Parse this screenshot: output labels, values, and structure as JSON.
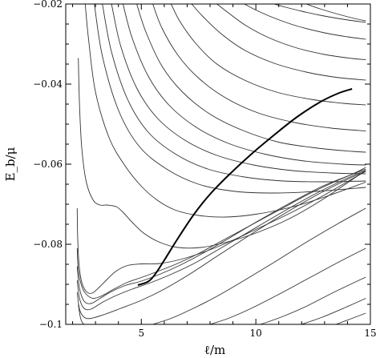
{
  "chart_data": {
    "type": "line",
    "title": "",
    "xlabel": "ℓ/m",
    "ylabel": "E_b/μ",
    "xlim": [
      1.7,
      15
    ],
    "ylim": [
      -0.1,
      -0.02
    ],
    "xticks": [
      5,
      10,
      15
    ],
    "xtick_labels": [
      "5",
      "10",
      "15"
    ],
    "yticks": [
      -0.1,
      -0.08,
      -0.06,
      -0.04,
      -0.02
    ],
    "ytick_labels": [
      "−0.1",
      "−0.08",
      "−0.06",
      "−0.04",
      "−0.02"
    ],
    "grid": false,
    "legend": "none",
    "colors": {
      "thin_curves": "#333333",
      "thick_curve": "#000000",
      "frame": "#000000"
    },
    "thin_series": [
      {
        "x": [
          10.8,
          11.3,
          12.0,
          12.8,
          13.8,
          14.8
        ],
        "y": [
          -0.02,
          -0.0208,
          -0.0218,
          -0.0228,
          -0.0238,
          -0.0246
        ]
      },
      {
        "x": [
          12.2,
          12.8,
          13.5,
          14.3,
          14.8
        ],
        "y": [
          -0.02,
          -0.0212,
          -0.0224,
          -0.0236,
          -0.0242
        ]
      },
      {
        "x": [
          9.5,
          10.0,
          10.8,
          11.8,
          13.0,
          14.0,
          14.8
        ],
        "y": [
          -0.02,
          -0.0215,
          -0.0235,
          -0.0255,
          -0.0272,
          -0.0282,
          -0.0288
        ]
      },
      {
        "x": [
          8.3,
          8.8,
          9.6,
          10.6,
          11.8,
          13.0,
          14.2,
          14.8
        ],
        "y": [
          -0.02,
          -0.0222,
          -0.0255,
          -0.0285,
          -0.031,
          -0.0326,
          -0.0336,
          -0.0339
        ]
      },
      {
        "x": [
          7.2,
          7.7,
          8.5,
          9.5,
          10.8,
          12.2,
          13.5,
          14.8
        ],
        "y": [
          -0.02,
          -0.0232,
          -0.0275,
          -0.0315,
          -0.0348,
          -0.037,
          -0.0383,
          -0.039
        ]
      },
      {
        "x": [
          6.3,
          6.7,
          7.4,
          8.3,
          9.5,
          10.9,
          12.4,
          13.8,
          14.8
        ],
        "y": [
          -0.02,
          -0.0245,
          -0.03,
          -0.035,
          -0.039,
          -0.042,
          -0.0438,
          -0.0448,
          -0.0452
        ]
      },
      {
        "x": [
          5.5,
          5.9,
          6.6,
          7.5,
          8.7,
          10.1,
          11.7,
          13.3,
          14.8
        ],
        "y": [
          -0.02,
          -0.026,
          -0.0328,
          -0.0385,
          -0.0435,
          -0.0472,
          -0.0496,
          -0.051,
          -0.0517
        ]
      },
      {
        "x": [
          4.8,
          5.2,
          5.9,
          6.8,
          8.0,
          9.4,
          11.0,
          12.7,
          14.2,
          14.8
        ],
        "y": [
          -0.02,
          -0.027,
          -0.0355,
          -0.042,
          -0.0475,
          -0.0515,
          -0.0545,
          -0.056,
          -0.0568,
          -0.057
        ]
      },
      {
        "x": [
          4.2,
          4.6,
          5.3,
          6.2,
          7.4,
          8.8,
          10.4,
          12.1,
          13.8,
          14.8
        ],
        "y": [
          -0.02,
          -0.0285,
          -0.038,
          -0.0452,
          -0.0508,
          -0.0548,
          -0.0575,
          -0.0592,
          -0.06,
          -0.0602
        ]
      },
      {
        "x": [
          3.7,
          4.1,
          4.8,
          5.7,
          6.9,
          8.3,
          9.9,
          11.6,
          13.3,
          14.8
        ],
        "y": [
          -0.02,
          -0.0305,
          -0.041,
          -0.0485,
          -0.054,
          -0.0578,
          -0.0602,
          -0.0616,
          -0.0622,
          -0.0624
        ]
      },
      {
        "x": [
          3.3,
          3.7,
          4.4,
          5.3,
          6.5,
          7.9,
          9.5,
          11.2,
          13.0,
          14.8
        ],
        "y": [
          -0.02,
          -0.032,
          -0.0438,
          -0.052,
          -0.0575,
          -0.0612,
          -0.0632,
          -0.0642,
          -0.0644,
          -0.0642
        ]
      },
      {
        "x": [
          2.95,
          3.3,
          4.0,
          4.9,
          6.1,
          7.5,
          9.1,
          10.8,
          12.6,
          14.8
        ],
        "y": [
          -0.02,
          -0.033,
          -0.0465,
          -0.0555,
          -0.0612,
          -0.065,
          -0.0668,
          -0.0672,
          -0.0668,
          -0.0658
        ]
      },
      {
        "x": [
          2.55,
          2.7,
          3.0,
          3.6,
          4.3,
          5.0,
          5.7,
          6.5,
          7.5,
          8.7,
          10.0,
          11.5,
          13.0,
          14.8
        ],
        "y": [
          -0.02,
          -0.029,
          -0.042,
          -0.0535,
          -0.0605,
          -0.0655,
          -0.069,
          -0.0715,
          -0.0728,
          -0.0732,
          -0.0725,
          -0.0708,
          -0.0682,
          -0.0645
        ]
      },
      {
        "x": [
          2.25,
          2.3,
          2.4,
          2.6,
          2.9,
          3.2,
          3.5,
          3.9,
          4.2,
          4.6,
          5.1,
          5.8,
          6.6,
          7.6,
          8.7,
          10.0,
          11.5,
          13.0,
          14.8
        ],
        "y": [
          -0.0335,
          -0.045,
          -0.056,
          -0.0645,
          -0.069,
          -0.0702,
          -0.0702,
          -0.0706,
          -0.072,
          -0.0745,
          -0.0772,
          -0.0795,
          -0.0808,
          -0.0808,
          -0.0795,
          -0.0772,
          -0.0735,
          -0.0685,
          -0.0615
        ]
      },
      {
        "x": [
          2.2,
          2.22,
          2.28,
          2.4,
          2.6,
          2.85,
          3.15,
          3.5,
          3.9,
          4.4,
          5.0,
          5.8,
          6.7,
          7.7,
          8.8,
          10.0,
          11.4,
          12.8,
          14.2,
          14.8
        ],
        "y": [
          -0.071,
          -0.078,
          -0.085,
          -0.0895,
          -0.0918,
          -0.0922,
          -0.0908,
          -0.0888,
          -0.0867,
          -0.0853,
          -0.0849,
          -0.0848,
          -0.0838,
          -0.082,
          -0.0795,
          -0.0763,
          -0.0725,
          -0.0683,
          -0.0637,
          -0.0618
        ]
      },
      {
        "x": [
          2.2,
          2.25,
          2.4,
          2.6,
          2.9,
          3.3,
          3.8,
          4.4,
          5.0,
          5.7,
          6.5,
          7.4,
          8.4,
          9.6,
          11.0,
          12.4,
          13.8,
          14.8
        ],
        "y": [
          -0.081,
          -0.0865,
          -0.0905,
          -0.0925,
          -0.0935,
          -0.0928,
          -0.0912,
          -0.0895,
          -0.0883,
          -0.0868,
          -0.085,
          -0.0826,
          -0.0795,
          -0.0758,
          -0.0715,
          -0.0672,
          -0.0635,
          -0.0612
        ]
      },
      {
        "x": [
          2.2,
          2.3,
          2.5,
          2.8,
          3.2,
          3.7,
          4.3,
          5.0,
          5.8,
          6.7,
          7.7,
          8.8,
          10.0,
          11.4,
          12.8,
          14.2,
          14.8
        ],
        "y": [
          -0.0855,
          -0.091,
          -0.0942,
          -0.0948,
          -0.0935,
          -0.0918,
          -0.0903,
          -0.0892,
          -0.0875,
          -0.0852,
          -0.0822,
          -0.0786,
          -0.0745,
          -0.07,
          -0.0658,
          -0.0625,
          -0.0608
        ]
      },
      {
        "x": [
          2.2,
          2.3,
          2.5,
          2.8,
          3.3,
          3.9,
          4.6,
          5.4,
          6.3,
          7.3,
          8.4,
          9.6,
          11.0,
          12.4,
          13.8,
          14.8
        ],
        "y": [
          -0.089,
          -0.0935,
          -0.096,
          -0.0962,
          -0.0945,
          -0.0928,
          -0.0912,
          -0.0896,
          -0.0875,
          -0.0848,
          -0.0812,
          -0.0772,
          -0.0725,
          -0.068,
          -0.064,
          -0.0615
        ]
      },
      {
        "x": [
          2.2,
          2.3,
          2.5,
          2.8,
          3.4,
          4.1,
          5.0,
          6.0,
          7.1,
          8.3,
          9.6,
          11.0,
          12.5,
          14.0,
          14.8
        ],
        "y": [
          -0.092,
          -0.0962,
          -0.0982,
          -0.0985,
          -0.0975,
          -0.096,
          -0.094,
          -0.0912,
          -0.0875,
          -0.083,
          -0.0782,
          -0.0732,
          -0.0682,
          -0.0638,
          -0.0618
        ]
      },
      {
        "x": [
          2.25,
          2.35,
          2.5,
          2.8,
          3.4,
          4.0
        ],
        "y": [
          -0.095,
          -0.0985,
          -0.1,
          -0.1,
          -0.1,
          -0.1
        ]
      },
      {
        "x": [
          5.5,
          6.3,
          7.2,
          8.3,
          9.5,
          10.8,
          12.2,
          13.6,
          14.8
        ],
        "y": [
          -0.1,
          -0.0985,
          -0.0962,
          -0.093,
          -0.089,
          -0.0845,
          -0.0795,
          -0.0748,
          -0.071
        ]
      },
      {
        "x": [
          8.0,
          8.8,
          9.8,
          11.0,
          12.3,
          13.7,
          14.8
        ],
        "y": [
          -0.1,
          -0.0985,
          -0.096,
          -0.0925,
          -0.0885,
          -0.0842,
          -0.081
        ]
      },
      {
        "x": [
          10.2,
          11.1,
          12.2,
          13.4,
          14.8
        ],
        "y": [
          -0.1,
          -0.0982,
          -0.0955,
          -0.092,
          -0.0882
        ]
      },
      {
        "x": [
          12.0,
          12.9,
          13.9,
          14.8
        ],
        "y": [
          -0.1,
          -0.0982,
          -0.0958,
          -0.0935
        ]
      },
      {
        "x": [
          13.5,
          14.2,
          14.8
        ],
        "y": [
          -0.1,
          -0.0985,
          -0.0972
        ]
      }
    ],
    "thick_series": {
      "x": [
        4.85,
        5.3,
        5.6,
        6.0,
        6.6,
        7.3,
        8.0,
        8.8,
        9.8,
        10.8,
        11.8,
        12.8,
        13.6,
        14.2
      ],
      "y": [
        -0.0902,
        -0.0893,
        -0.0875,
        -0.084,
        -0.0785,
        -0.0725,
        -0.0675,
        -0.0628,
        -0.0575,
        -0.0527,
        -0.0482,
        -0.0445,
        -0.0423,
        -0.0412
      ]
    }
  }
}
